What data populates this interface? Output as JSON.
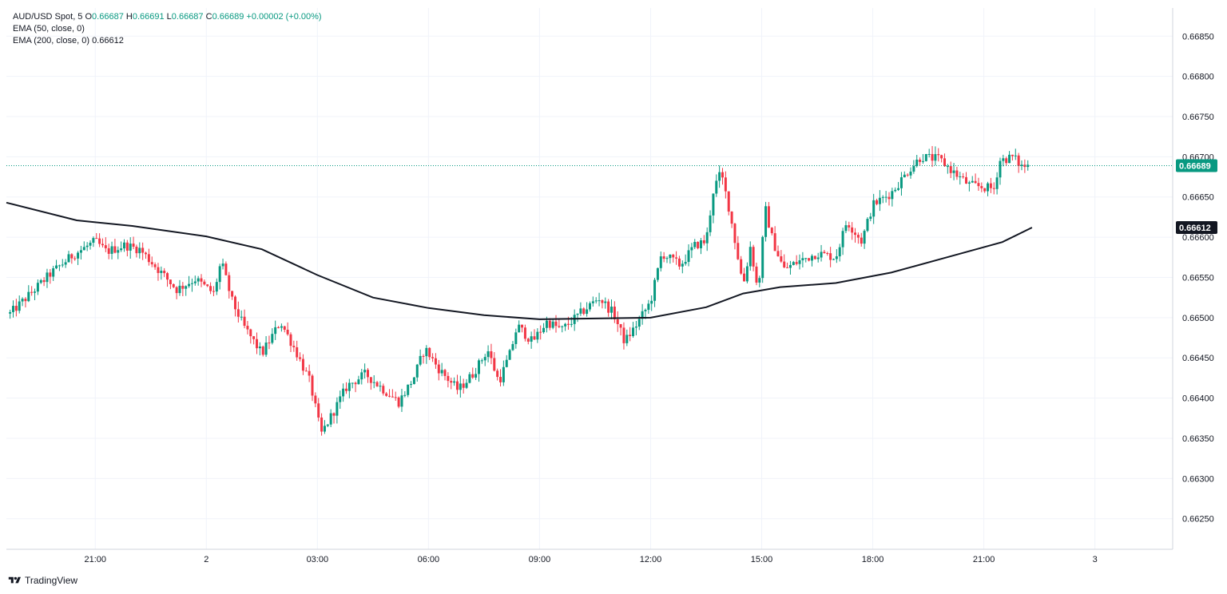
{
  "legend": {
    "symbol": "AUD/USD Spot, 5",
    "o_label": "O",
    "o_value": "0.66687",
    "h_label": "H",
    "h_value": "0.66691",
    "l_label": "L",
    "l_value": "0.66687",
    "c_label": "C",
    "c_value": "0.66689",
    "change": "+0.00002 (+0.00%)",
    "ema50_label": "EMA (50, close, 0)",
    "ema200_label": "EMA (200, close, 0)",
    "ema200_value": "0.66612"
  },
  "brand": {
    "name": "TradingView"
  },
  "colors": {
    "up": "#089981",
    "down": "#f23645",
    "ema": "#131722",
    "grid": "#f0f3fa",
    "axis_text": "#131722",
    "price_line": "#089981"
  },
  "chart_data": {
    "type": "candlestick",
    "timeframe": "5",
    "y_ticks": [
      0.6685,
      0.668,
      0.6675,
      0.667,
      0.6665,
      0.666,
      0.6655,
      0.665,
      0.6645,
      0.664,
      0.6635,
      0.663,
      0.6625
    ],
    "y_tick_labels": [
      "0.66850",
      "0.66800",
      "0.66750",
      "0.66700",
      "0.66650",
      "0.66600",
      "0.66550",
      "0.66500",
      "0.66450",
      "0.66400",
      "0.66350",
      "0.66300",
      "0.66250"
    ],
    "ylim": [
      0.66212,
      0.66885
    ],
    "x_tick_labels": [
      "21:00",
      "2",
      "03:00",
      "06:00",
      "09:00",
      "12:00",
      "15:00",
      "18:00",
      "21:00",
      "3"
    ],
    "x_tick_hours": [
      21,
      24,
      27,
      30,
      33,
      36,
      39,
      42,
      45,
      48
    ],
    "xlim_hours": [
      18.6,
      50.1
    ],
    "last_price": 0.66689,
    "last_price_label": "0.66689",
    "ema200_value": 0.66612,
    "ema200_label": "0.66612",
    "close_anchors": [
      [
        18.7,
        0.66505
      ],
      [
        19.3,
        0.66532
      ],
      [
        19.8,
        0.66555
      ],
      [
        20.4,
        0.66578
      ],
      [
        21.0,
        0.66595
      ],
      [
        21.3,
        0.66582
      ],
      [
        21.8,
        0.6659
      ],
      [
        22.2,
        0.66585
      ],
      [
        22.7,
        0.6656
      ],
      [
        23.2,
        0.66535
      ],
      [
        23.7,
        0.66548
      ],
      [
        24.2,
        0.6653
      ],
      [
        24.4,
        0.6657
      ],
      [
        24.7,
        0.6652
      ],
      [
        25.0,
        0.6649
      ],
      [
        25.5,
        0.66455
      ],
      [
        26.0,
        0.66495
      ],
      [
        26.4,
        0.6646
      ],
      [
        26.8,
        0.6642
      ],
      [
        27.1,
        0.66355
      ],
      [
        27.4,
        0.6638
      ],
      [
        27.8,
        0.66415
      ],
      [
        28.3,
        0.6643
      ],
      [
        28.8,
        0.6641
      ],
      [
        29.2,
        0.66395
      ],
      [
        29.6,
        0.66425
      ],
      [
        29.9,
        0.66462
      ],
      [
        30.3,
        0.66435
      ],
      [
        30.8,
        0.6641
      ],
      [
        31.2,
        0.6643
      ],
      [
        31.6,
        0.6646
      ],
      [
        31.9,
        0.6642
      ],
      [
        32.2,
        0.66455
      ],
      [
        32.4,
        0.6649
      ],
      [
        32.8,
        0.6647
      ],
      [
        33.2,
        0.66495
      ],
      [
        33.6,
        0.66485
      ],
      [
        34.1,
        0.66505
      ],
      [
        34.6,
        0.66525
      ],
      [
        35.0,
        0.66505
      ],
      [
        35.3,
        0.6647
      ],
      [
        35.6,
        0.6649
      ],
      [
        36.0,
        0.6652
      ],
      [
        36.3,
        0.6658
      ],
      [
        36.8,
        0.66565
      ],
      [
        37.2,
        0.6659
      ],
      [
        37.5,
        0.66595
      ],
      [
        37.7,
        0.6666
      ],
      [
        37.9,
        0.6668
      ],
      [
        38.1,
        0.6664
      ],
      [
        38.3,
        0.6659
      ],
      [
        38.5,
        0.6654
      ],
      [
        38.7,
        0.6659
      ],
      [
        38.9,
        0.6653
      ],
      [
        39.1,
        0.66635
      ],
      [
        39.3,
        0.66595
      ],
      [
        39.6,
        0.6656
      ],
      [
        40.0,
        0.6657
      ],
      [
        40.5,
        0.6658
      ],
      [
        41.0,
        0.66575
      ],
      [
        41.3,
        0.6662
      ],
      [
        41.7,
        0.66595
      ],
      [
        42.0,
        0.6664
      ],
      [
        42.5,
        0.66655
      ],
      [
        43.0,
        0.66685
      ],
      [
        43.3,
        0.667
      ],
      [
        43.8,
        0.66697
      ],
      [
        44.2,
        0.6668
      ],
      [
        44.6,
        0.66665
      ],
      [
        45.0,
        0.66662
      ],
      [
        45.3,
        0.6666
      ],
      [
        45.4,
        0.66695
      ],
      [
        45.8,
        0.667
      ],
      [
        46.0,
        0.66688
      ],
      [
        46.2,
        0.66689
      ]
    ],
    "ema200_anchors": [
      [
        18.6,
        0.66643
      ],
      [
        20.5,
        0.66621
      ],
      [
        22.0,
        0.66614
      ],
      [
        24.0,
        0.66601
      ],
      [
        25.5,
        0.66585
      ],
      [
        27.0,
        0.66553
      ],
      [
        28.5,
        0.66525
      ],
      [
        30.0,
        0.66512
      ],
      [
        31.5,
        0.66503
      ],
      [
        33.0,
        0.66498
      ],
      [
        34.5,
        0.66499
      ],
      [
        36.0,
        0.665
      ],
      [
        37.5,
        0.66513
      ],
      [
        38.5,
        0.6653
      ],
      [
        39.5,
        0.66538
      ],
      [
        41.0,
        0.66543
      ],
      [
        42.5,
        0.66556
      ],
      [
        44.0,
        0.66575
      ],
      [
        45.5,
        0.66594
      ],
      [
        46.3,
        0.66612
      ]
    ],
    "candle_interval_hours": 0.0833,
    "first_candle_hour": 18.7,
    "last_candle_hour": 46.2
  }
}
